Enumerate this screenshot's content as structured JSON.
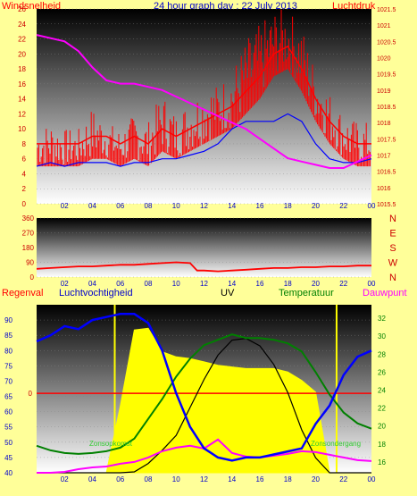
{
  "header": {
    "left_label": "Windsnelheid",
    "title": "24 hour graph day : 22 July 2013",
    "right_label": "Luchtdruk"
  },
  "bottom_header": {
    "regen": "Regenval",
    "vocht": "Luchtvochtigheid",
    "uv": "UV",
    "temp": "Temperatuur",
    "dauw": "Dauwpunt"
  },
  "annotations": {
    "sunrise": "Zonsopkomst",
    "sunset": "Zonsondergang"
  },
  "colors": {
    "background": "#ffff99",
    "wind": "#ff0000",
    "gust_fill": "#ff0000",
    "avg_wind": "#0000ff",
    "pressure": "#ff00ff",
    "direction": "#ff0000",
    "humidity": "#0000ff",
    "temperature": "#008000",
    "dewpoint": "#ff00ff",
    "solar": "#ffff00",
    "uv": "#000000",
    "rain": "#ff0000"
  },
  "x_ticks": [
    "02",
    "04",
    "06",
    "08",
    "10",
    "12",
    "14",
    "16",
    "18",
    "20",
    "22",
    "00"
  ],
  "chart_data": [
    {
      "type": "line",
      "title": "24 hour graph day : 22 July 2013",
      "x": [
        0,
        1,
        2,
        3,
        4,
        5,
        6,
        7,
        8,
        9,
        10,
        11,
        12,
        13,
        14,
        15,
        16,
        17,
        18,
        19,
        20,
        21,
        22,
        23,
        24
      ],
      "series": [
        {
          "name": "Windsnelheid",
          "axis": "left",
          "values": [
            8,
            8,
            8,
            8,
            9,
            9,
            8,
            9,
            8,
            10,
            9,
            10,
            11,
            12,
            13,
            15,
            17,
            20,
            21,
            18,
            14,
            11,
            9,
            8,
            8
          ],
          "max": [
            10,
            11,
            10,
            10,
            13,
            11,
            10,
            12,
            11,
            15,
            12,
            14,
            16,
            16,
            18,
            22,
            24,
            26,
            26,
            24,
            18,
            15,
            12,
            11,
            11
          ]
        },
        {
          "name": "avg-wind",
          "axis": "left",
          "values": [
            5,
            5.5,
            5,
            5.5,
            5.5,
            5.5,
            5,
            5.5,
            5.5,
            6,
            6,
            6.5,
            7,
            8,
            10,
            11,
            11,
            11,
            12,
            11,
            8,
            6,
            5.5,
            5.5,
            6
          ]
        },
        {
          "name": "Luchtdruk",
          "axis": "right",
          "values": [
            1020.7,
            1020.6,
            1020.5,
            1020.2,
            1019.7,
            1019.3,
            1019.2,
            1019.2,
            1019.1,
            1019.0,
            1018.8,
            1018.6,
            1018.4,
            1018.2,
            1018.0,
            1017.8,
            1017.5,
            1017.2,
            1016.9,
            1016.8,
            1016.7,
            1016.6,
            1016.6,
            1016.8,
            1017.0
          ]
        }
      ],
      "y_left": {
        "label": "Windsnelheid",
        "ylim": [
          0,
          26
        ],
        "ticks": [
          0,
          2,
          4,
          6,
          8,
          10,
          12,
          14,
          16,
          18,
          20,
          22,
          24,
          26
        ]
      },
      "y_right": {
        "label": "Luchtdruk",
        "ylim": [
          1015.5,
          1021.5
        ],
        "ticks": [
          "1015.5",
          "1016",
          "1016.5",
          "1017",
          "1017.5",
          "1018",
          "1018.5",
          "1019",
          "1019.5",
          "1020",
          "1020.5",
          "1021",
          "1021.5"
        ]
      }
    },
    {
      "type": "line",
      "series": [
        {
          "name": "direction",
          "x": [
            0,
            1,
            2,
            3,
            4,
            5,
            6,
            7,
            8,
            9,
            10,
            11,
            11.5,
            12,
            13,
            14,
            15,
            16,
            17,
            18,
            19,
            20,
            21,
            22,
            23,
            24
          ],
          "values": [
            50,
            55,
            60,
            65,
            65,
            70,
            75,
            75,
            80,
            85,
            90,
            85,
            40,
            40,
            35,
            40,
            45,
            50,
            55,
            55,
            60,
            60,
            65,
            65,
            70,
            70
          ]
        }
      ],
      "y_left": {
        "ticks": [
          0,
          90,
          180,
          270,
          360
        ],
        "ylim": [
          0,
          360
        ]
      },
      "y_right": {
        "ticks": [
          "N",
          "W",
          "S",
          "E",
          "N"
        ]
      }
    },
    {
      "type": "line",
      "x": [
        0,
        1,
        2,
        3,
        4,
        5,
        6,
        7,
        8,
        9,
        10,
        11,
        12,
        13,
        14,
        15,
        16,
        17,
        18,
        19,
        20,
        21,
        22,
        23,
        24
      ],
      "series": [
        {
          "name": "Luchtvochtigheid",
          "axis": "left",
          "values": [
            83,
            85,
            88,
            87,
            90,
            91,
            92,
            92,
            89,
            80,
            66,
            55,
            48,
            45,
            44,
            45,
            45,
            46,
            47,
            48,
            56,
            62,
            72,
            78,
            80
          ]
        },
        {
          "name": "Temperatuur",
          "axis": "right",
          "values": [
            17.8,
            17.3,
            17,
            16.9,
            17,
            17.2,
            17.6,
            18.6,
            20.8,
            23,
            25.5,
            27.5,
            29,
            29.6,
            30.2,
            29.8,
            29.8,
            29.6,
            29.2,
            28.3,
            26,
            23.5,
            21.5,
            20.3,
            19.7
          ]
        },
        {
          "name": "Dauwpunt",
          "axis": "right",
          "values": [
            14.8,
            14.8,
            14.9,
            15.2,
            15.4,
            15.5,
            15.8,
            16,
            16.5,
            17.2,
            17.6,
            17.8,
            17.5,
            18.5,
            17,
            16.6,
            16.5,
            16.7,
            16.9,
            17.2,
            17.1,
            16.8,
            16.5,
            16.2,
            16.1
          ]
        },
        {
          "name": "UV",
          "axis": "uv",
          "values": [
            0,
            0,
            0,
            0,
            0,
            0,
            0,
            0.05,
            0.5,
            1.2,
            2,
            3.5,
            5,
            6.3,
            7.1,
            7.2,
            6.8,
            5.8,
            4.3,
            2.3,
            0.8,
            0,
            0,
            0,
            0
          ]
        },
        {
          "name": "solar",
          "axis": "solar",
          "values": [
            0,
            0,
            0,
            0,
            0,
            0,
            0.4,
            0.85,
            0.86,
            0.72,
            0.69,
            0.68,
            0.66,
            0.64,
            0.63,
            0.62,
            0.62,
            0.62,
            0.6,
            0.55,
            0.48,
            0,
            0,
            0,
            0
          ]
        }
      ],
      "rain_value": 0,
      "y_left": {
        "label": "Luchtvochtigheid",
        "ylim": [
          40,
          95
        ],
        "ticks": [
          40,
          45,
          50,
          55,
          60,
          65,
          70,
          75,
          80,
          85,
          90
        ]
      },
      "y_right": {
        "label": "Temperatuur",
        "ylim": [
          14.8,
          33.5
        ],
        "ticks": [
          16,
          18,
          20,
          22,
          24,
          26,
          28,
          30,
          32
        ]
      },
      "y_rain": {
        "label": "Regenval",
        "ticks": [
          0
        ]
      }
    }
  ]
}
